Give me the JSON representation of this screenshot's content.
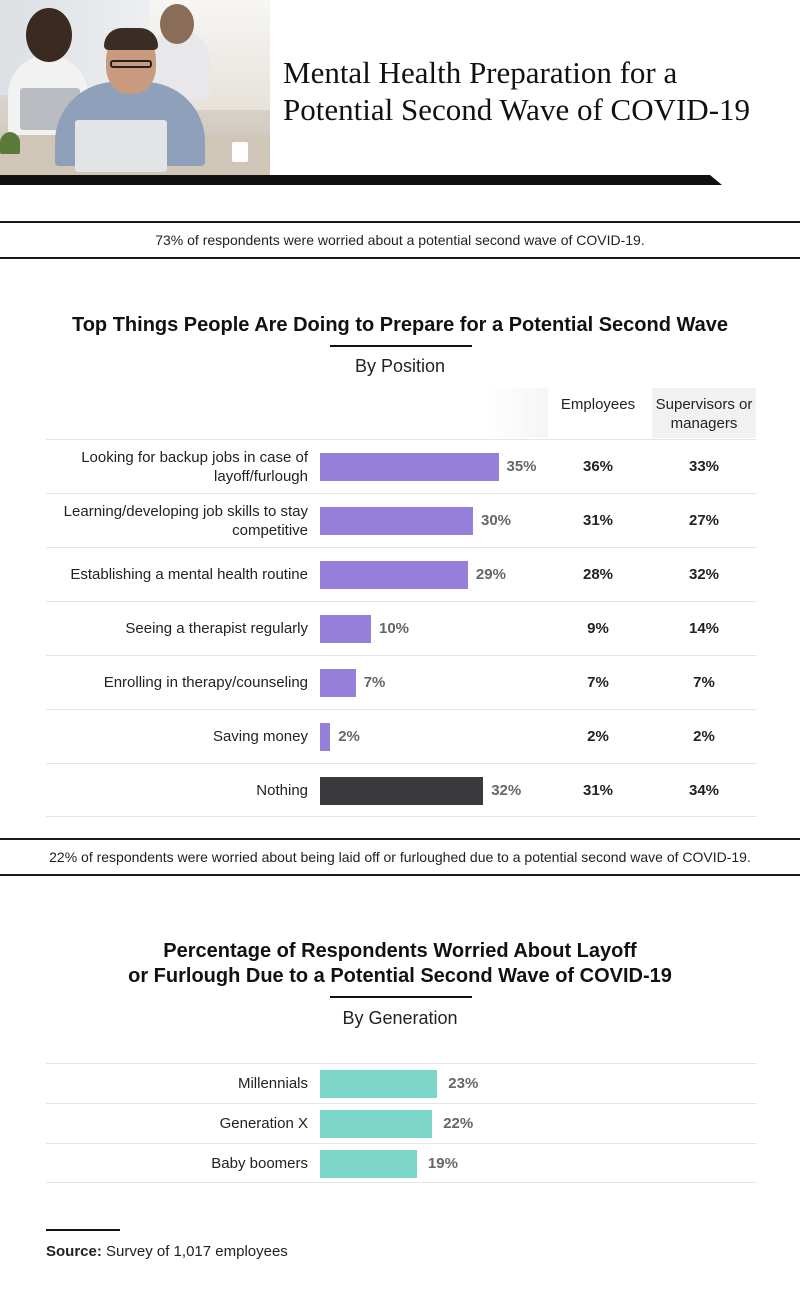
{
  "header": {
    "title_line1": "Mental Health Preparation for a",
    "title_line2": "Potential Second Wave of COVID-19"
  },
  "callouts": {
    "top": "73% of respondents were worried about a potential second wave of COVID-19.",
    "middle": "22% of respondents were worried about being laid off or furloughed due to a potential second wave of COVID-19."
  },
  "colors": {
    "bar_primary": "#957fdb",
    "bar_nothing": "#3a3a3c",
    "bar_generation": "#7bd6c8"
  },
  "chart_data": [
    {
      "type": "bar",
      "orientation": "horizontal",
      "title": "Top Things People Are Doing to Prepare for a Potential Second Wave",
      "subtitle": "By Position",
      "categories": [
        "Looking for backup jobs in case of layoff/furlough",
        "Learning/developing job skills to stay competitive",
        "Establishing a mental health routine",
        "Seeing a therapist regularly",
        "Enrolling in therapy/counseling",
        "Saving money",
        "Nothing"
      ],
      "values": [
        35,
        30,
        29,
        10,
        7,
        2,
        32
      ],
      "value_labels": [
        "35%",
        "30%",
        "29%",
        "10%",
        "7%",
        "2%",
        "32%"
      ],
      "table_columns": [
        "Employees",
        "Supervisors or managers"
      ],
      "employees": [
        "36%",
        "31%",
        "28%",
        "9%",
        "7%",
        "2%",
        "31%"
      ],
      "supervisors": [
        "33%",
        "27%",
        "32%",
        "14%",
        "7%",
        "2%",
        "34%"
      ],
      "xlim": [
        0,
        100
      ]
    },
    {
      "type": "bar",
      "orientation": "horizontal",
      "title_line1": "Percentage of Respondents Worried About Layoff",
      "title_line2": "or Furlough Due to a Potential Second Wave of COVID-19",
      "subtitle": "By Generation",
      "categories": [
        "Millennials",
        "Generation X",
        "Baby boomers"
      ],
      "values": [
        23,
        22,
        19
      ],
      "value_labels": [
        "23%",
        "22%",
        "19%"
      ],
      "xlim": [
        0,
        100
      ]
    }
  ],
  "source": {
    "label": "Source:",
    "text": " Survey of 1,017 employees"
  }
}
